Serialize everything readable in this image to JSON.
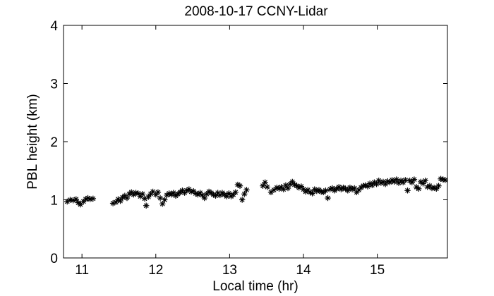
{
  "chart_data": {
    "type": "scatter",
    "title": "2008-10-17 CCNY-Lidar",
    "xlabel": "Local time (hr)",
    "ylabel": "PBL height (km)",
    "xlim": [
      10.75,
      15.95
    ],
    "ylim": [
      0,
      4
    ],
    "xticks": [
      11,
      12,
      13,
      14,
      15
    ],
    "yticks": [
      0,
      1,
      2,
      3,
      4
    ],
    "marker": "asterisk",
    "marker_color": "#000000",
    "grid": false,
    "legend": "none",
    "series": [
      {
        "points": [
          [
            10.8,
            0.97
          ],
          [
            10.84,
            1.0
          ],
          [
            10.88,
            0.99
          ],
          [
            10.92,
            1.01
          ],
          [
            10.95,
            0.95
          ],
          [
            10.98,
            0.92
          ],
          [
            11.02,
            0.97
          ],
          [
            11.05,
            1.01
          ],
          [
            11.08,
            1.03
          ],
          [
            11.11,
            1.01
          ],
          [
            11.15,
            1.02
          ],
          [
            11.42,
            0.94
          ],
          [
            11.46,
            0.96
          ],
          [
            11.49,
            1.01
          ],
          [
            11.52,
            0.98
          ],
          [
            11.55,
            1.04
          ],
          [
            11.58,
            1.07
          ],
          [
            11.61,
            1.03
          ],
          [
            11.64,
            1.1
          ],
          [
            11.67,
            1.13
          ],
          [
            11.7,
            1.09
          ],
          [
            11.73,
            1.12
          ],
          [
            11.76,
            1.11
          ],
          [
            11.79,
            1.06
          ],
          [
            11.82,
            1.1
          ],
          [
            11.85,
            1.02
          ],
          [
            11.87,
            0.9
          ],
          [
            11.9,
            1.05
          ],
          [
            11.93,
            1.1
          ],
          [
            11.96,
            1.14
          ],
          [
            12.0,
            1.09
          ],
          [
            12.03,
            1.13
          ],
          [
            12.06,
            1.03
          ],
          [
            12.09,
            0.93
          ],
          [
            12.12,
            1.0
          ],
          [
            12.15,
            1.08
          ],
          [
            12.18,
            1.11
          ],
          [
            12.21,
            1.09
          ],
          [
            12.24,
            1.12
          ],
          [
            12.27,
            1.07
          ],
          [
            12.3,
            1.1
          ],
          [
            12.33,
            1.13
          ],
          [
            12.36,
            1.16
          ],
          [
            12.39,
            1.12
          ],
          [
            12.42,
            1.16
          ],
          [
            12.45,
            1.18
          ],
          [
            12.48,
            1.14
          ],
          [
            12.51,
            1.15
          ],
          [
            12.54,
            1.11
          ],
          [
            12.57,
            1.09
          ],
          [
            12.6,
            1.12
          ],
          [
            12.63,
            1.08
          ],
          [
            12.66,
            1.03
          ],
          [
            12.69,
            1.1
          ],
          [
            12.72,
            1.14
          ],
          [
            12.75,
            1.12
          ],
          [
            12.78,
            1.09
          ],
          [
            12.81,
            1.07
          ],
          [
            12.84,
            1.12
          ],
          [
            12.87,
            1.08
          ],
          [
            12.9,
            1.12
          ],
          [
            12.93,
            1.09
          ],
          [
            12.96,
            1.06
          ],
          [
            12.99,
            1.11
          ],
          [
            13.02,
            1.06
          ],
          [
            13.05,
            1.09
          ],
          [
            13.08,
            1.13
          ],
          [
            13.11,
            1.26
          ],
          [
            13.14,
            1.24
          ],
          [
            13.17,
            1.0
          ],
          [
            13.2,
            1.1
          ],
          [
            13.23,
            1.17
          ],
          [
            13.45,
            1.24
          ],
          [
            13.48,
            1.3
          ],
          [
            13.51,
            1.22
          ],
          [
            13.56,
            1.13
          ],
          [
            13.6,
            1.17
          ],
          [
            13.64,
            1.21
          ],
          [
            13.67,
            1.19
          ],
          [
            13.7,
            1.22
          ],
          [
            13.73,
            1.18
          ],
          [
            13.76,
            1.25
          ],
          [
            13.79,
            1.2
          ],
          [
            13.82,
            1.27
          ],
          [
            13.85,
            1.31
          ],
          [
            13.88,
            1.26
          ],
          [
            13.91,
            1.24
          ],
          [
            13.94,
            1.21
          ],
          [
            13.97,
            1.23
          ],
          [
            14.0,
            1.18
          ],
          [
            14.03,
            1.14
          ],
          [
            14.06,
            1.17
          ],
          [
            14.09,
            1.13
          ],
          [
            14.12,
            1.11
          ],
          [
            14.15,
            1.18
          ],
          [
            14.18,
            1.15
          ],
          [
            14.21,
            1.17
          ],
          [
            14.24,
            1.14
          ],
          [
            14.27,
            1.13
          ],
          [
            14.3,
            1.16
          ],
          [
            14.33,
            1.03
          ],
          [
            14.36,
            1.18
          ],
          [
            14.39,
            1.2
          ],
          [
            14.42,
            1.16
          ],
          [
            14.45,
            1.19
          ],
          [
            14.48,
            1.22
          ],
          [
            14.51,
            1.18
          ],
          [
            14.54,
            1.21
          ],
          [
            14.57,
            1.19
          ],
          [
            14.6,
            1.16
          ],
          [
            14.63,
            1.21
          ],
          [
            14.66,
            1.18
          ],
          [
            14.69,
            1.2
          ],
          [
            14.72,
            1.13
          ],
          [
            14.75,
            1.17
          ],
          [
            14.78,
            1.21
          ],
          [
            14.81,
            1.24
          ],
          [
            14.84,
            1.25
          ],
          [
            14.87,
            1.23
          ],
          [
            14.9,
            1.28
          ],
          [
            14.93,
            1.25
          ],
          [
            14.96,
            1.3
          ],
          [
            14.99,
            1.27
          ],
          [
            15.02,
            1.33
          ],
          [
            15.05,
            1.29
          ],
          [
            15.08,
            1.31
          ],
          [
            15.11,
            1.27
          ],
          [
            15.14,
            1.32
          ],
          [
            15.17,
            1.3
          ],
          [
            15.2,
            1.34
          ],
          [
            15.23,
            1.31
          ],
          [
            15.26,
            1.35
          ],
          [
            15.29,
            1.29
          ],
          [
            15.32,
            1.33
          ],
          [
            15.35,
            1.3
          ],
          [
            15.38,
            1.34
          ],
          [
            15.41,
            1.16
          ],
          [
            15.44,
            1.33
          ],
          [
            15.47,
            1.3
          ],
          [
            15.5,
            1.35
          ],
          [
            15.53,
            1.22
          ],
          [
            15.56,
            1.19
          ],
          [
            15.59,
            1.31
          ],
          [
            15.62,
            1.28
          ],
          [
            15.65,
            1.33
          ],
          [
            15.68,
            1.22
          ],
          [
            15.71,
            1.24
          ],
          [
            15.74,
            1.2
          ],
          [
            15.77,
            1.21
          ],
          [
            15.8,
            1.19
          ],
          [
            15.83,
            1.24
          ],
          [
            15.86,
            1.36
          ],
          [
            15.89,
            1.35
          ],
          [
            15.92,
            1.34
          ]
        ]
      }
    ]
  }
}
